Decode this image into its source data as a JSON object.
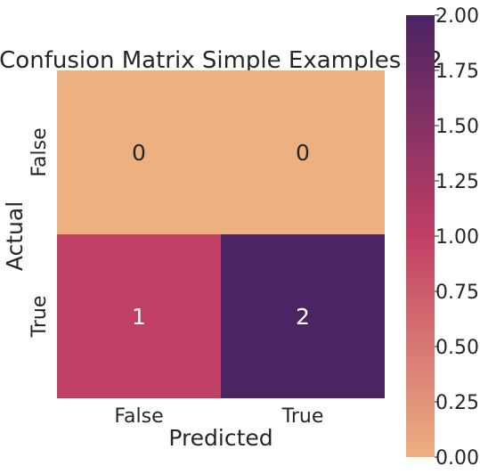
{
  "chart_data": {
    "type": "heatmap",
    "title": "Confusion Matrix Simple Examples #2",
    "xlabel": "Predicted",
    "ylabel": "Actual",
    "x_categories": [
      "False",
      "True"
    ],
    "y_categories": [
      "False",
      "True"
    ],
    "values": [
      [
        0,
        0
      ],
      [
        1,
        2
      ]
    ],
    "cell_labels": [
      [
        "0",
        "0"
      ],
      [
        "1",
        "2"
      ]
    ],
    "colorbar": {
      "range": [
        0.0,
        2.0
      ],
      "ticks": [
        0.0,
        0.25,
        0.5,
        0.75,
        1.0,
        1.25,
        1.5,
        1.75,
        2.0
      ],
      "tick_labels": [
        "0.00",
        "0.25",
        "0.50",
        "0.75",
        "1.00",
        "1.25",
        "1.50",
        "1.75",
        "2.00"
      ],
      "colormap": "flare",
      "low_color": "#edb081",
      "mid_color": "#c03f64",
      "high_color": "#4b2463"
    },
    "cell_text_colors": {
      "light_cells": "#262626",
      "dark_cells": "#ffffff"
    },
    "grid": false,
    "legend": "none"
  }
}
